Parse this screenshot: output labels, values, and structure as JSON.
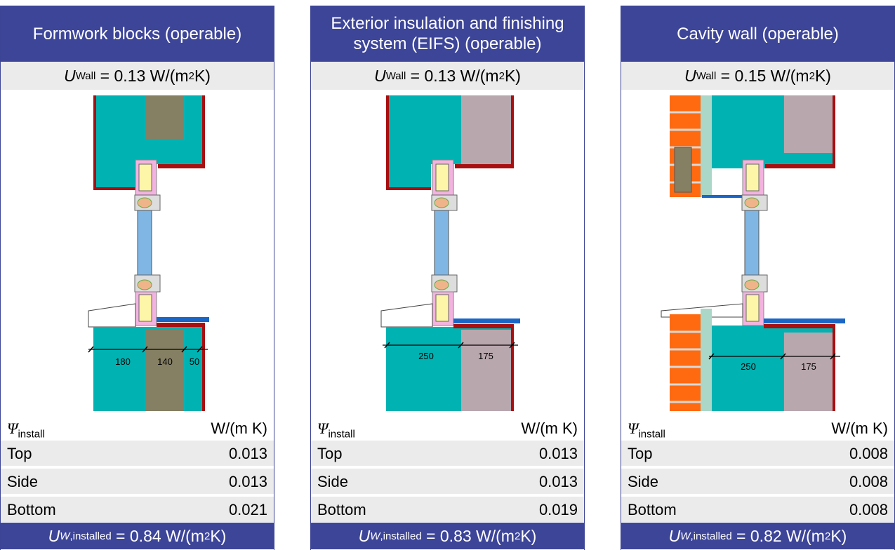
{
  "panels": [
    {
      "title": "Formwork blocks (operable)",
      "u_wall_value": "0.13",
      "psi_unit": "W/(m K)",
      "rows": [
        {
          "label": "Top",
          "value": "0.013"
        },
        {
          "label": "Side",
          "value": "0.013"
        },
        {
          "label": "Bottom",
          "value": "0.021"
        }
      ],
      "u_installed_value": "0.84",
      "dimensions": [
        "180",
        "140",
        "50"
      ]
    },
    {
      "title": "Exterior insulation and finishing system (EIFS) (operable)",
      "u_wall_value": "0.13",
      "psi_unit": "W/(m K)",
      "rows": [
        {
          "label": "Top",
          "value": "0.013"
        },
        {
          "label": "Side",
          "value": "0.013"
        },
        {
          "label": "Bottom",
          "value": "0.019"
        }
      ],
      "u_installed_value": "0.83",
      "dimensions": [
        "250",
        "175"
      ]
    },
    {
      "title": "Cavity wall (operable)",
      "u_wall_value": "0.15",
      "psi_unit": "W/(m K)",
      "rows": [
        {
          "label": "Top",
          "value": "0.008"
        },
        {
          "label": "Side",
          "value": "0.008"
        },
        {
          "label": "Bottom",
          "value": "0.008"
        }
      ],
      "u_installed_value": "0.82",
      "dimensions": [
        "250",
        "175"
      ]
    }
  ],
  "labels": {
    "u_wall_symbol": "U",
    "u_wall_sub": "Wall",
    "u_unit_prefix": "W/(m",
    "u_unit_sup": "2",
    "u_unit_suffix": " K)",
    "psi_symbol": "Ψ",
    "psi_sub": "install",
    "u_inst_symbol": "U",
    "u_inst_sub_italic": "W",
    "u_inst_sub": ",installed"
  },
  "colors": {
    "header_bg": "#3d4599",
    "row_bg": "#ebebeb",
    "concrete": "#00b2b2",
    "insulation_brown": "#857f63",
    "insulation_mauve": "#b9a7ae",
    "plaster_red": "#a80f10",
    "brick": "#ff6a10",
    "glass": "#7fb6e3",
    "sill": "#1a66c6"
  }
}
